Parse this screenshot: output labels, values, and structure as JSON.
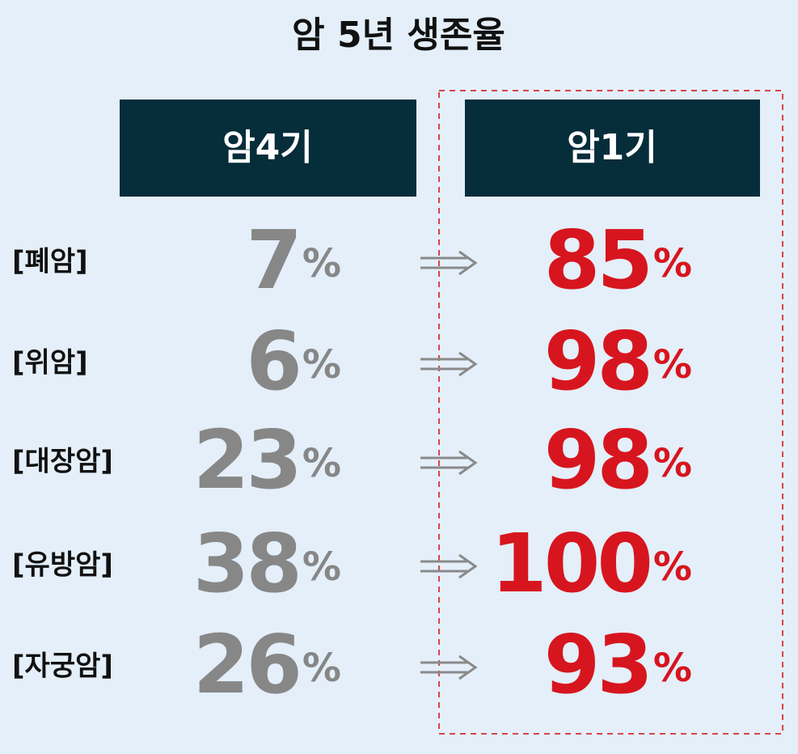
{
  "title": "암 5년 생존율",
  "columns": [
    "암4기",
    "암1기"
  ],
  "unit": "%",
  "rows": [
    {
      "label": "[폐암]",
      "stage4": 7,
      "stage1": 85
    },
    {
      "label": "[위암]",
      "stage4": 6,
      "stage1": 98
    },
    {
      "label": "[대장암]",
      "stage4": 23,
      "stage1": 98
    },
    {
      "label": "[유방암]",
      "stage4": 38,
      "stage1": 100
    },
    {
      "label": "[자궁암]",
      "stage4": 26,
      "stage1": 93
    }
  ]
}
